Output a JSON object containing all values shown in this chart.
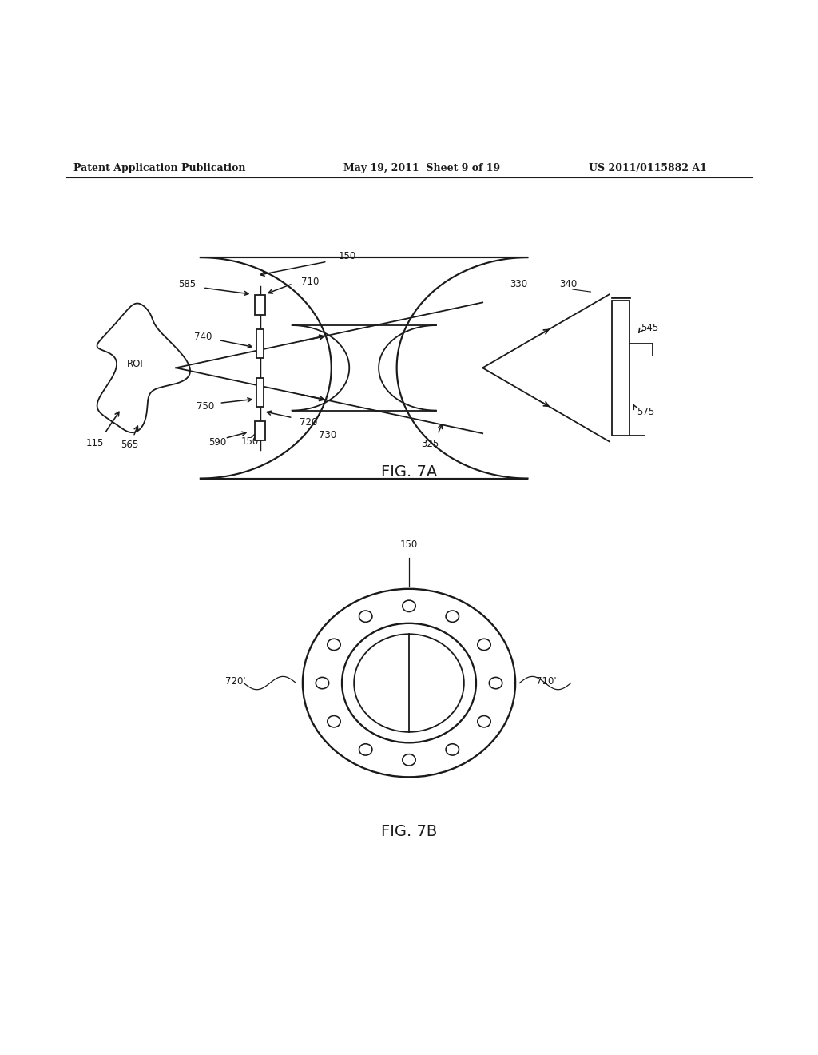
{
  "bg_color": "#ffffff",
  "line_color": "#1a1a1a",
  "fig7a_caption": "FIG. 7A",
  "fig7b_caption": "FIG. 7B",
  "header_left": "Patent Application Publication",
  "header_mid": "May 19, 2011  Sheet 9 of 19",
  "header_right": "US 2011/0115882 A1"
}
